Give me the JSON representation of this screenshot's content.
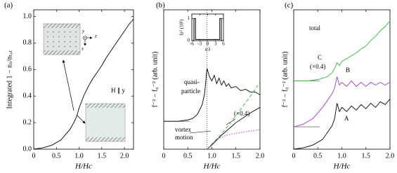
{
  "chart_data": [
    {
      "type": "line",
      "panel_label": "(a)",
      "xlabel": "H/Hc",
      "ylabel": "Integrated 1 − nₛ/nₜₒₜ",
      "xlim": [
        0,
        2.2
      ],
      "xticks": [
        0,
        0.5,
        {
          "value": 1,
          "label": "1.0"
        },
        1.5,
        {
          "value": 2,
          "label": "2.0"
        }
      ],
      "ylim": [
        0,
        1.05
      ],
      "yticks": [
        {
          "value": 0,
          "label": "0.0"
        },
        0.2,
        0.4,
        0.6,
        0.8,
        {
          "value": 1,
          "label": "1.0"
        }
      ],
      "annotations": [
        "H ∥ y"
      ],
      "inset_axes": [
        "y",
        "z",
        "x"
      ],
      "series": [
        {
          "color": "#000000",
          "dash": "solid",
          "x": [
            0,
            0.2,
            0.4,
            0.6,
            0.8,
            0.9,
            0.95,
            1.0,
            1.1,
            1.2,
            1.3,
            1.4,
            1.5,
            1.6,
            1.7,
            1.8,
            1.9,
            2.0,
            2.1,
            2.2
          ],
          "values": [
            0,
            0.01,
            0.03,
            0.07,
            0.15,
            0.21,
            0.25,
            0.31,
            0.4,
            0.47,
            0.53,
            0.58,
            0.63,
            0.69,
            0.74,
            0.79,
            0.84,
            0.89,
            0.94,
            0.98
          ]
        }
      ]
    },
    {
      "type": "line",
      "panel_label": "(b)",
      "xlabel": "H/Hc",
      "ylabel": "f⁻² − f₀⁻² (arb. unit)",
      "xlim": [
        0,
        2
      ],
      "xticks": [
        0,
        0.5,
        {
          "value": 1,
          "label": "1.0"
        },
        1.5,
        {
          "value": 2,
          "label": "2.0"
        }
      ],
      "ylim": [
        0,
        1
      ],
      "vline": 0.9,
      "annotations": [
        "quasi-",
        "particle",
        "vortex",
        "motion",
        "(×0.4)"
      ],
      "series": [
        {
          "color": "#000000",
          "dash": "solid",
          "baseline": 0.2,
          "x": [
            0,
            0.3,
            0.5,
            0.6,
            0.7,
            0.8,
            0.85,
            0.9,
            0.95,
            1.0,
            1.05,
            1.1,
            1.15,
            1.2,
            1.25,
            1.3,
            1.35,
            1.4,
            1.5,
            1.6,
            1.7,
            1.8,
            1.9,
            2.0
          ],
          "values": [
            0.2,
            0.2,
            0.21,
            0.22,
            0.25,
            0.32,
            0.4,
            0.58,
            0.52,
            0.49,
            0.53,
            0.47,
            0.51,
            0.46,
            0.49,
            0.45,
            0.47,
            0.44,
            0.45,
            0.42,
            0.43,
            0.41,
            0.41,
            0.39
          ]
        },
        {
          "color": "#000000",
          "dash": "solid",
          "x": [
            0.9,
            1.0,
            1.2,
            1.5,
            1.8,
            2.0
          ],
          "values": [
            0,
            0.03,
            0.1,
            0.19,
            0.26,
            0.3
          ]
        },
        {
          "color": "#3cb043",
          "dash": "dashed",
          "x": [
            0.9,
            1.2,
            1.5,
            1.8,
            2.0
          ],
          "values": [
            0,
            0.11,
            0.24,
            0.38,
            0.48
          ]
        },
        {
          "color": "#a040c0",
          "dash": "dotted",
          "x": [
            0.9,
            1.1,
            1.3,
            1.6,
            2.0
          ],
          "values": [
            0,
            0.07,
            0.1,
            0.12,
            0.14
          ]
        }
      ],
      "inset": {
        "xlabel": "x/λ",
        "ylabel": "Iz² (10²)",
        "xlim": [
          -6,
          6
        ],
        "xticks": [
          -6,
          -3,
          0,
          3,
          6
        ],
        "ylim": [
          0,
          1.2
        ],
        "yticks": [
          0,
          1
        ],
        "series": [
          {
            "color": "#000000",
            "dash": "solid",
            "x": [
              -6,
              -5.2,
              -5.2,
              -4.6,
              -4.6,
              4.6,
              4.6,
              5.2,
              5.2,
              6
            ],
            "values": [
              0,
              0,
              1,
              1,
              0.05,
              0.05,
              1,
              1,
              0,
              0
            ]
          }
        ]
      }
    },
    {
      "type": "line",
      "panel_label": "(c)",
      "xlabel": "H/Hc",
      "ylabel": "f⁻² − f₀⁻² (arb. unit)",
      "xlim": [
        0,
        2
      ],
      "xticks": [
        0,
        0.5,
        {
          "value": 1,
          "label": "1.0"
        },
        1.5,
        {
          "value": 2,
          "label": "2.0"
        }
      ],
      "ylim": [
        0,
        1
      ],
      "annotations": [
        "total",
        "C",
        "(×0.4)",
        "B",
        "A"
      ],
      "series": [
        {
          "color": "#3cb043",
          "dash": "solid",
          "baseline": 0.49,
          "x": [
            0,
            0.3,
            0.5,
            0.7,
            0.8,
            0.85,
            0.9,
            0.95,
            1.0,
            1.1,
            1.2,
            1.3,
            1.4,
            1.5,
            1.6,
            1.7,
            1.8,
            1.9,
            2.0
          ],
          "values": [
            0.49,
            0.49,
            0.5,
            0.52,
            0.55,
            0.58,
            0.62,
            0.6,
            0.63,
            0.65,
            0.67,
            0.69,
            0.72,
            0.74,
            0.78,
            0.81,
            0.85,
            0.88,
            0.92
          ]
        },
        {
          "color": "#a040c0",
          "dash": "solid",
          "baseline": 0.16,
          "x": [
            0,
            0.2,
            0.4,
            0.6,
            0.8,
            0.85,
            0.9,
            0.95,
            1.0,
            1.1,
            1.2,
            1.3,
            1.4,
            1.5,
            1.6,
            1.7,
            1.8,
            1.9,
            2.0
          ],
          "values": [
            0.16,
            0.18,
            0.22,
            0.3,
            0.4,
            0.44,
            0.52,
            0.46,
            0.48,
            0.45,
            0.49,
            0.45,
            0.48,
            0.45,
            0.48,
            0.46,
            0.48,
            0.46,
            0.48
          ]
        },
        {
          "color": "#000000",
          "dash": "solid",
          "baseline": 0.16,
          "x": [
            0,
            0.2,
            0.4,
            0.6,
            0.8,
            0.85,
            0.9,
            0.95,
            1.0,
            1.1,
            1.2,
            1.3,
            1.4,
            1.5,
            1.6,
            1.7,
            1.8,
            1.9,
            2.0
          ],
          "values": [
            0,
            0.01,
            0.03,
            0.07,
            0.17,
            0.22,
            0.33,
            0.27,
            0.3,
            0.27,
            0.31,
            0.28,
            0.32,
            0.29,
            0.33,
            0.3,
            0.34,
            0.32,
            0.36
          ]
        }
      ]
    }
  ]
}
